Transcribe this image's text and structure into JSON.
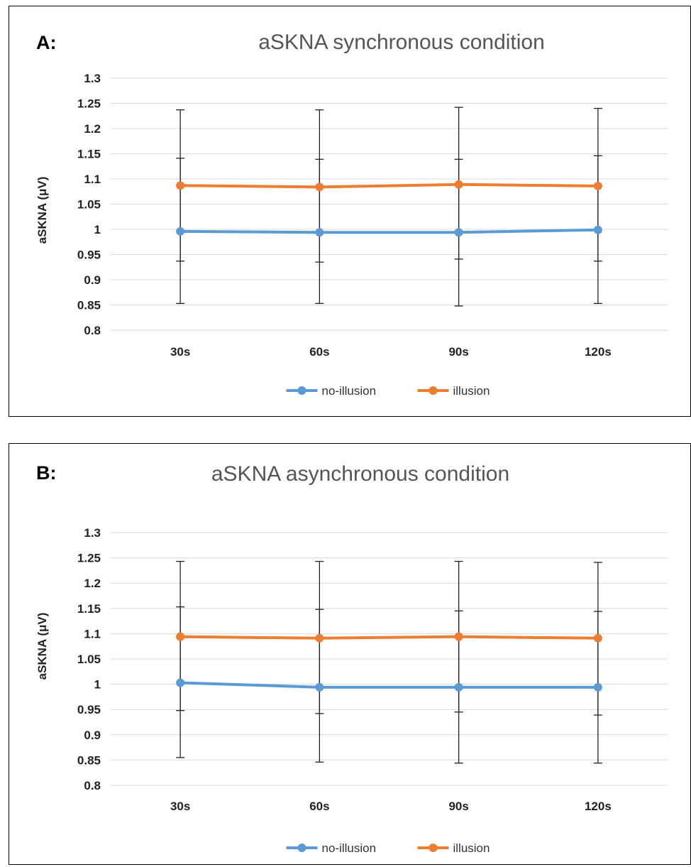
{
  "chart_data": [
    {
      "type": "line",
      "panel_label": "A:",
      "title": "aSKNA synchronous condition",
      "xlabel": "",
      "ylabel": "aSKNA (μV)",
      "categories": [
        "30s",
        "60s",
        "90s",
        "120s"
      ],
      "ylim": [
        0.8,
        1.3
      ],
      "yticks": [
        "0.8",
        "0.85",
        "0.9",
        "0.95",
        "1",
        "1.05",
        "1.1",
        "1.15",
        "1.2",
        "1.25",
        "1.3"
      ],
      "grid": true,
      "legend_position": "bottom",
      "series": [
        {
          "name": "no-illusion",
          "color": "#5b9bd5",
          "values": [
            0.996,
            0.994,
            0.994,
            0.999
          ],
          "error_low": [
            0.853,
            0.853,
            0.848,
            0.853
          ],
          "error_high": [
            1.141,
            1.139,
            1.139,
            1.146
          ]
        },
        {
          "name": "illusion",
          "color": "#ed7d31",
          "values": [
            1.087,
            1.084,
            1.089,
            1.086
          ],
          "error_low": [
            0.937,
            0.935,
            0.941,
            0.937
          ],
          "error_high": [
            1.237,
            1.237,
            1.242,
            1.24
          ]
        }
      ]
    },
    {
      "type": "line",
      "panel_label": "B:",
      "title": "aSKNA asynchronous condition",
      "xlabel": "",
      "ylabel": "aSKNA (μV)",
      "categories": [
        "30s",
        "60s",
        "90s",
        "120s"
      ],
      "ylim": [
        0.8,
        1.3
      ],
      "yticks": [
        "0.8",
        "0.85",
        "0.9",
        "0.95",
        "1",
        "1.05",
        "1.1",
        "1.15",
        "1.2",
        "1.25",
        "1.3"
      ],
      "grid": true,
      "legend_position": "bottom",
      "series": [
        {
          "name": "no-illusion",
          "color": "#5b9bd5",
          "values": [
            1.003,
            0.994,
            0.994,
            0.994
          ],
          "error_low": [
            0.855,
            0.846,
            0.844,
            0.844
          ],
          "error_high": [
            1.153,
            1.148,
            1.145,
            1.144
          ]
        },
        {
          "name": "illusion",
          "color": "#ed7d31",
          "values": [
            1.094,
            1.091,
            1.094,
            1.091
          ],
          "error_low": [
            0.948,
            0.942,
            0.945,
            0.939
          ],
          "error_high": [
            1.243,
            1.243,
            1.243,
            1.241
          ]
        }
      ]
    }
  ]
}
